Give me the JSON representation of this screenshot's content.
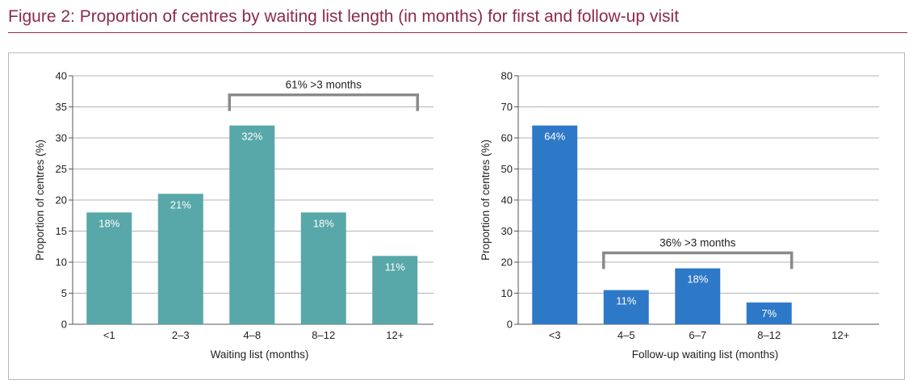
{
  "figure": {
    "title": "Figure 2: Proportion of centres by waiting list length (in months) for first and follow-up visit"
  },
  "chart_data": [
    {
      "type": "bar",
      "categories": [
        "<1",
        "2–3",
        "4–8",
        "8–12",
        "12+"
      ],
      "values": [
        18,
        21,
        32,
        18,
        11
      ],
      "data_labels": [
        "18%",
        "21%",
        "32%",
        "18%",
        "11%"
      ],
      "xlabel": "Waiting list (months)",
      "ylabel": "Proportion of centres (%)",
      "ylim": [
        0,
        40
      ],
      "yticks": [
        0,
        5,
        10,
        15,
        20,
        25,
        30,
        35,
        40
      ],
      "grid": true,
      "color": "#58a7a9",
      "annotation": {
        "text": "61% >3 months",
        "from_category": 2,
        "to_category": 4,
        "level": 37
      }
    },
    {
      "type": "bar",
      "categories": [
        "<3",
        "4–5",
        "6–7",
        "8–12",
        "12+"
      ],
      "values": [
        64,
        11,
        18,
        7,
        0
      ],
      "data_labels": [
        "64%",
        "11%",
        "18%",
        "7%",
        ""
      ],
      "xlabel": "Follow-up waiting list (months)",
      "ylabel": "Proportion of centres (%)",
      "ylim": [
        0,
        80
      ],
      "yticks": [
        0,
        10,
        20,
        30,
        40,
        50,
        60,
        70,
        80
      ],
      "grid": true,
      "color": "#2e78c8",
      "annotation": {
        "text": "36% >3 months",
        "from_category": 1,
        "to_category": 3,
        "level": 23
      }
    }
  ]
}
